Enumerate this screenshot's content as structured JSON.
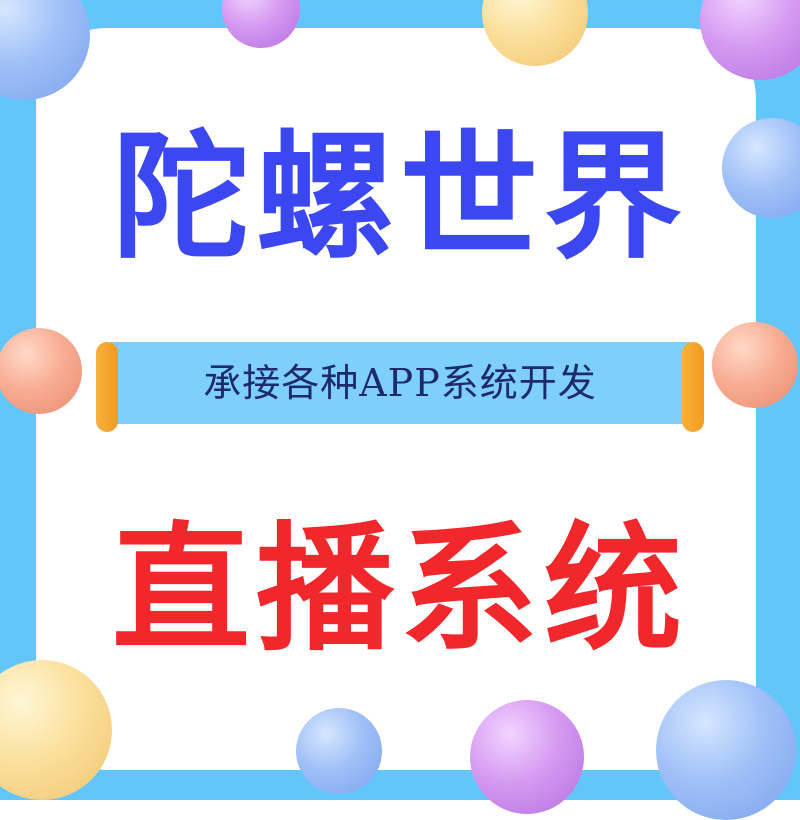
{
  "headline_top": "陀螺世界",
  "tagline": "承接各种APP系统开发",
  "headline_bottom": "直播系统",
  "colors": {
    "background": "#63c6fb",
    "panel": "#ffffff",
    "headline_top": "#3b47f0",
    "headline_bottom": "#f0282b",
    "banner": "#7ed0fb",
    "banner_roll": "#f39a1e"
  }
}
